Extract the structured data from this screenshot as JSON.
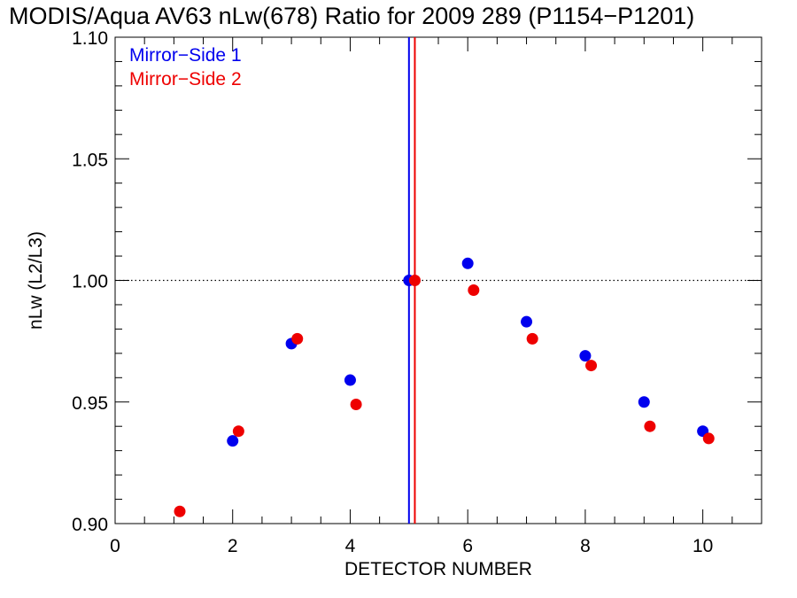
{
  "chart_data": {
    "type": "scatter",
    "title": "MODIS/Aqua AV63 nLw(678) Ratio for 2009 289 (P1154−P1201)",
    "xlabel": "DETECTOR NUMBER",
    "ylabel": "nLw (L2/L3)",
    "xlim": [
      0,
      11
    ],
    "ylim": [
      0.9,
      1.1
    ],
    "x_ticks": [
      0,
      2,
      4,
      6,
      8,
      10
    ],
    "x_tick_labels": [
      "0",
      "2",
      "4",
      "6",
      "8",
      "10"
    ],
    "y_ticks": [
      0.9,
      0.95,
      1.0,
      1.05,
      1.1
    ],
    "y_tick_labels": [
      "0.90",
      "0.95",
      "1.00",
      "1.05",
      "1.10"
    ],
    "reference_line": {
      "y": 1.0,
      "style": "dotted",
      "color": "#000000"
    },
    "legend_position": "top-left",
    "series": [
      {
        "name": "Mirror−Side 1",
        "color": "#0000ee",
        "x": [
          2,
          3,
          4,
          5,
          6,
          7,
          8,
          9,
          10
        ],
        "y": [
          0.934,
          0.974,
          0.959,
          1.0,
          1.007,
          0.983,
          0.969,
          0.95,
          0.938
        ],
        "vline_x": 5.0
      },
      {
        "name": "Mirror−Side 2",
        "color": "#ee0000",
        "x": [
          1.1,
          2.1,
          3.1,
          4.1,
          5.1,
          6.1,
          7.1,
          8.1,
          9.1,
          10.1
        ],
        "y": [
          0.905,
          0.938,
          0.976,
          0.949,
          1.0,
          0.996,
          0.976,
          0.965,
          0.94,
          0.935
        ],
        "vline_x": 5.1
      }
    ]
  }
}
